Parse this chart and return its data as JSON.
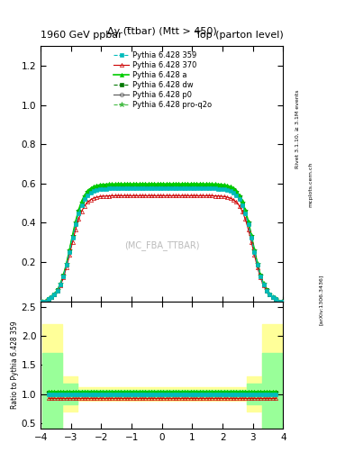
{
  "title_left": "1960 GeV ppbar",
  "title_right": "Top (parton level)",
  "ylabel_ratio": "Ratio to Pythia 6.428 359",
  "plot_label": "Δy (t̅tbar) (Mtt > 450)",
  "watermark": "(MC_FBA_TTBAR)",
  "rivet_label": "Rivet 3.1.10, ≥ 3.1M events",
  "arxiv_label": "[arXiv:1306.3436]",
  "mcplots_label": "mcplots.cern.ch",
  "xlim": [
    -4.0,
    4.0
  ],
  "ylim_main": [
    0.0,
    1.3
  ],
  "ylim_ratio": [
    0.4,
    2.6
  ],
  "yticks_main": [
    0.2,
    0.4,
    0.6,
    0.8,
    1.0,
    1.2
  ],
  "yticks_ratio": [
    0.5,
    1.0,
    1.5,
    2.0,
    2.5
  ],
  "xticks": [
    -4,
    -3,
    -2,
    -1,
    0,
    1,
    2,
    3,
    4
  ],
  "series": [
    {
      "label": "Pythia 6.428 359",
      "color": "#00bbbb",
      "marker": "s",
      "markersize": 3,
      "linestyle": "--",
      "linewidth": 0.8,
      "markerfacecolor": "#00bbbb",
      "scale": 1.0
    },
    {
      "label": "Pythia 6.428 370",
      "color": "#cc0000",
      "marker": "^",
      "markersize": 3,
      "linestyle": "-",
      "linewidth": 0.8,
      "markerfacecolor": "none",
      "scale": 0.935
    },
    {
      "label": "Pythia 6.428 a",
      "color": "#00cc00",
      "marker": "^",
      "markersize": 3,
      "linestyle": "-",
      "linewidth": 1.2,
      "markerfacecolor": "#00cc00",
      "scale": 1.04
    },
    {
      "label": "Pythia 6.428 dw",
      "color": "#007700",
      "marker": "s",
      "markersize": 3,
      "linestyle": "--",
      "linewidth": 0.8,
      "markerfacecolor": "#007700",
      "scale": 1.02
    },
    {
      "label": "Pythia 6.428 p0",
      "color": "#555555",
      "marker": "o",
      "markersize": 3,
      "linestyle": "-",
      "linewidth": 0.8,
      "markerfacecolor": "none",
      "scale": 1.01
    },
    {
      "label": "Pythia 6.428 pro-q2o",
      "color": "#44bb44",
      "marker": "*",
      "markersize": 4,
      "linestyle": "--",
      "linewidth": 0.8,
      "markerfacecolor": "#44bb44",
      "scale": 1.03
    }
  ],
  "bg_color": "#ffffff",
  "ratio_band_yellow": "#ffff99",
  "ratio_band_green": "#99ff99"
}
